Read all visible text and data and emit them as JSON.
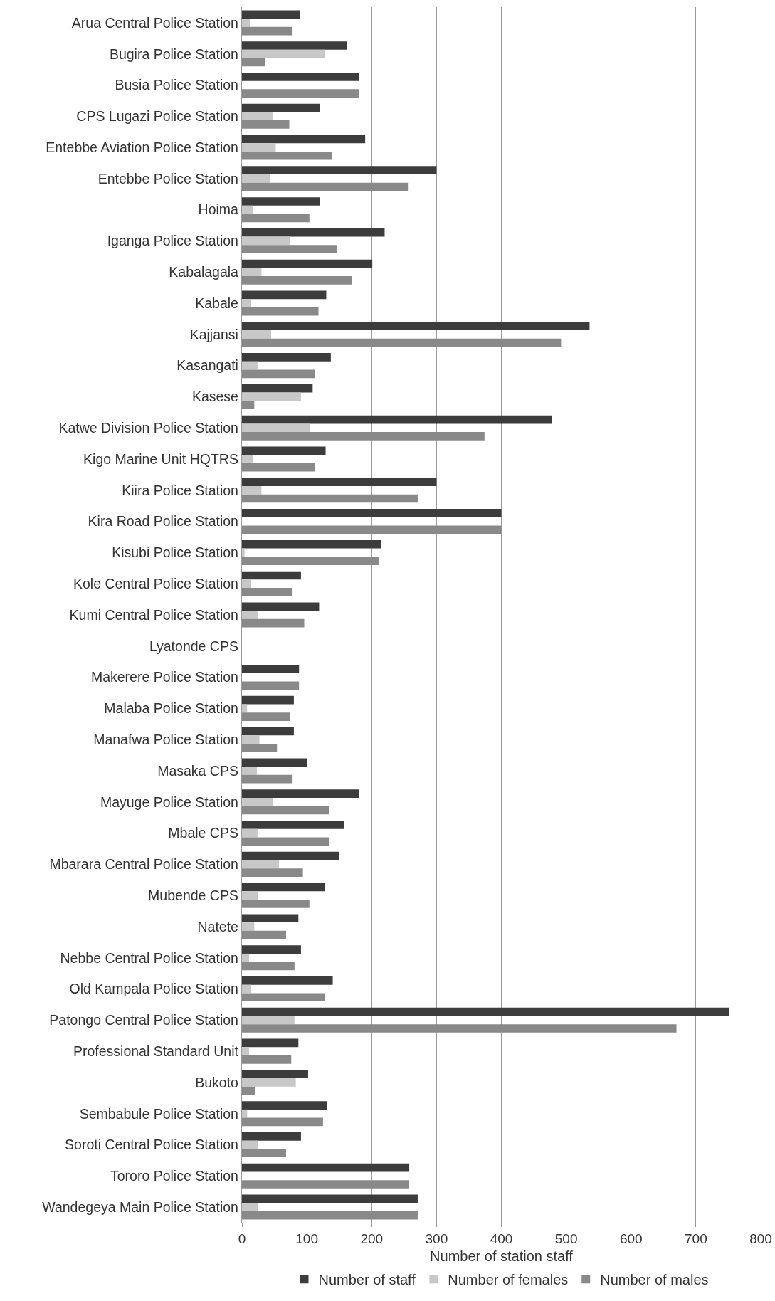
{
  "chart_data": {
    "type": "bar",
    "orientation": "horizontal",
    "xlabel": "Number of station staff",
    "categories": [
      "Arua Central Police Station",
      "Bugira Police Station",
      "Busia Police Station",
      "CPS Lugazi Police Station",
      "Entebbe Aviation Police Station",
      "Entebbe Police Station",
      "Hoima",
      "Iganga Police Station",
      "Kabalagala",
      "Kabale",
      "Kajjansi",
      "Kasangati",
      "Kasese",
      "Katwe Division Police Station",
      "Kigo Marine Unit HQTRS",
      "Kiira Police Station",
      "Kira Road Police Station",
      "Kisubi Police Station",
      "Kole Central Police Station",
      "Kumi Central Police Station",
      "Lyatonde CPS",
      "Makerere Police Station",
      "Malaba Police Station",
      "Manafwa Police Station",
      "Masaka CPS",
      "Mayuge Police Station",
      "Mbale CPS",
      "Mbarara Central Police Station",
      "Mubende CPS",
      "Natete",
      "Nebbe Central Police Station",
      "Old Kampala Police Station",
      "Patongo Central Police Station",
      "Professional Standard Unit",
      "Bukoto",
      "Sembabule Police Station",
      "Soroti Central Police Station",
      "Tororo Police Station",
      "Wandegeya Main Police Station"
    ],
    "series": [
      {
        "name": "Number of staff",
        "color": "#3c3c3c",
        "values": [
          89,
          162,
          180,
          120,
          190,
          300,
          120,
          220,
          201,
          130,
          536,
          137,
          109,
          478,
          129,
          300,
          400,
          214,
          91,
          119,
          null,
          88,
          80,
          80,
          100,
          180,
          158,
          150,
          128,
          87,
          91,
          140,
          751,
          87,
          102,
          131,
          91,
          258,
          271
        ]
      },
      {
        "name": "Number of females",
        "color": "#c8c8c8",
        "values": [
          12,
          128,
          0,
          48,
          52,
          43,
          17,
          74,
          30,
          14,
          45,
          24,
          91,
          105,
          17,
          30,
          0,
          4,
          14,
          24,
          null,
          0,
          8,
          27,
          23,
          48,
          24,
          57,
          25,
          19,
          11,
          14,
          81,
          11,
          83,
          8,
          25,
          0,
          25
        ]
      },
      {
        "name": "Number of males",
        "color": "#898989",
        "values": [
          78,
          36,
          180,
          73,
          139,
          257,
          104,
          147,
          170,
          118,
          492,
          113,
          19,
          374,
          112,
          271,
          400,
          211,
          78,
          96,
          null,
          88,
          74,
          54,
          78,
          134,
          135,
          94,
          104,
          68,
          81,
          128,
          670,
          76,
          20,
          125,
          68,
          258,
          271
        ]
      }
    ],
    "xlim": [
      0,
      800
    ],
    "xticks": [
      0,
      100,
      200,
      300,
      400,
      500,
      600,
      700,
      800
    ],
    "grid": "x",
    "legend": "bottom"
  }
}
